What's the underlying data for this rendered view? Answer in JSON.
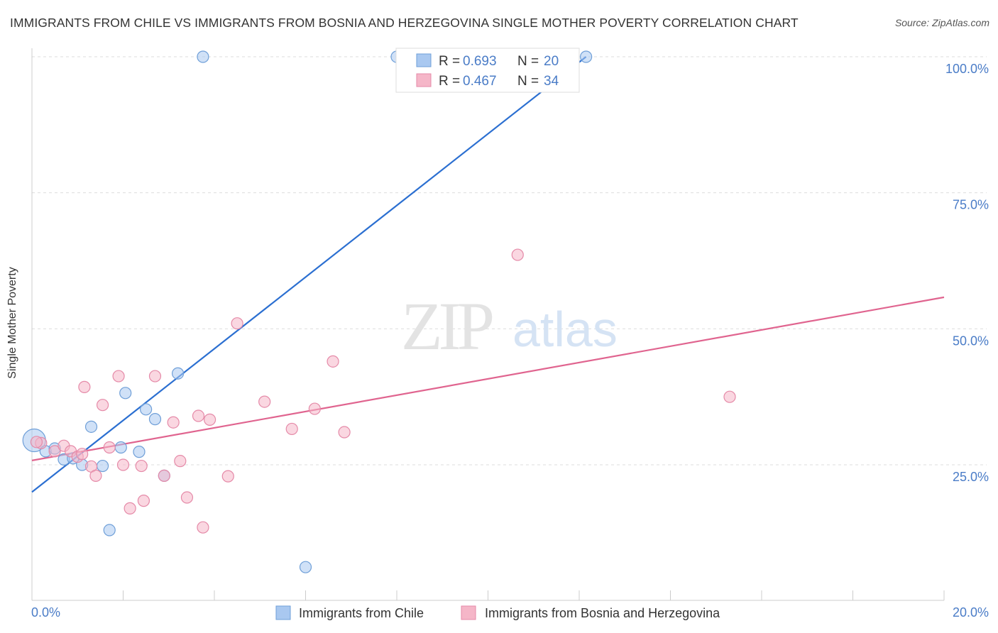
{
  "title": "IMMIGRANTS FROM CHILE VS IMMIGRANTS FROM BOSNIA AND HERZEGOVINA SINGLE MOTHER POVERTY CORRELATION CHART",
  "source": "Source: ZipAtlas.com",
  "watermark": {
    "zip": "ZIP",
    "atlas": "atlas"
  },
  "colors": {
    "blue_fill": "#a9c8f0",
    "blue_stroke": "#6f9fd8",
    "blue_line": "#2b6fd1",
    "pink_fill": "#f5b6c8",
    "pink_stroke": "#e58aa8",
    "pink_line": "#e0648f",
    "tick_label": "#4a7cc7",
    "grid": "#dddddd"
  },
  "legend": {
    "r_label": "R =",
    "n_label": "N =",
    "items": [
      {
        "r": "0.693",
        "n": "20"
      },
      {
        "r": "0.467",
        "n": "34"
      }
    ]
  },
  "chart_data": {
    "type": "scatter",
    "title": "IMMIGRANTS FROM CHILE VS IMMIGRANTS FROM BOSNIA AND HERZEGOVINA SINGLE MOTHER POVERTY CORRELATION CHART",
    "xlabel": "",
    "ylabel": "Single Mother Poverty",
    "xlim": [
      0,
      20
    ],
    "ylim": [
      0,
      104
    ],
    "x_tick_labels": [
      "0.0%",
      "20.0%"
    ],
    "y_ticks": [
      25,
      50,
      75,
      100
    ],
    "y_tick_labels": [
      "25.0%",
      "50.0%",
      "75.0%",
      "100.0%"
    ],
    "grid": true,
    "legend_position": "bottom",
    "series": [
      {
        "name": "Immigrants from Chile",
        "color": "blue",
        "points": [
          {
            "x": 0.05,
            "y": 29.5,
            "big": true
          },
          {
            "x": 0.3,
            "y": 27.5
          },
          {
            "x": 0.5,
            "y": 28.0
          },
          {
            "x": 0.7,
            "y": 26.0
          },
          {
            "x": 0.9,
            "y": 26.2
          },
          {
            "x": 1.1,
            "y": 25.0
          },
          {
            "x": 1.3,
            "y": 32.0
          },
          {
            "x": 1.55,
            "y": 24.8
          },
          {
            "x": 1.7,
            "y": 13.0
          },
          {
            "x": 1.95,
            "y": 28.2
          },
          {
            "x": 2.05,
            "y": 38.2
          },
          {
            "x": 2.35,
            "y": 27.4
          },
          {
            "x": 2.5,
            "y": 35.2
          },
          {
            "x": 2.7,
            "y": 33.4
          },
          {
            "x": 2.9,
            "y": 23.0
          },
          {
            "x": 3.2,
            "y": 41.8
          },
          {
            "x": 3.75,
            "y": 100
          },
          {
            "x": 6.0,
            "y": 6.2
          },
          {
            "x": 8.0,
            "y": 100
          },
          {
            "x": 12.15,
            "y": 100
          }
        ],
        "trend": {
          "x0": 0,
          "y0": 20.0,
          "x1": 12.15,
          "y1": 100
        }
      },
      {
        "name": "Immigrants from Bosnia and Herzegovina",
        "color": "pink",
        "points": [
          {
            "x": 0.2,
            "y": 29.0
          },
          {
            "x": 0.5,
            "y": 27.5
          },
          {
            "x": 0.7,
            "y": 28.5
          },
          {
            "x": 0.85,
            "y": 27.5
          },
          {
            "x": 1.0,
            "y": 26.5
          },
          {
            "x": 1.1,
            "y": 27.0
          },
          {
            "x": 1.15,
            "y": 39.3
          },
          {
            "x": 1.3,
            "y": 24.7
          },
          {
            "x": 1.4,
            "y": 23.0
          },
          {
            "x": 1.55,
            "y": 36.0
          },
          {
            "x": 1.7,
            "y": 28.2
          },
          {
            "x": 1.9,
            "y": 41.3
          },
          {
            "x": 2.0,
            "y": 25.0
          },
          {
            "x": 2.15,
            "y": 17.0
          },
          {
            "x": 2.4,
            "y": 24.8
          },
          {
            "x": 2.45,
            "y": 18.4
          },
          {
            "x": 2.7,
            "y": 41.3
          },
          {
            "x": 2.9,
            "y": 23.0
          },
          {
            "x": 3.1,
            "y": 32.8
          },
          {
            "x": 3.25,
            "y": 25.7
          },
          {
            "x": 3.4,
            "y": 19.0
          },
          {
            "x": 3.65,
            "y": 34.0
          },
          {
            "x": 3.75,
            "y": 13.5
          },
          {
            "x": 3.9,
            "y": 33.3
          },
          {
            "x": 4.3,
            "y": 22.9
          },
          {
            "x": 4.5,
            "y": 51.0
          },
          {
            "x": 5.1,
            "y": 36.6
          },
          {
            "x": 5.7,
            "y": 31.6
          },
          {
            "x": 6.2,
            "y": 35.3
          },
          {
            "x": 6.6,
            "y": 44.0
          },
          {
            "x": 6.85,
            "y": 31.0
          },
          {
            "x": 10.65,
            "y": 63.6
          },
          {
            "x": 15.3,
            "y": 37.5
          },
          {
            "x": 0.1,
            "y": 29.2
          }
        ],
        "trend": {
          "x0": 0,
          "y0": 25.8,
          "x1": 20,
          "y1": 55.8
        }
      }
    ]
  }
}
